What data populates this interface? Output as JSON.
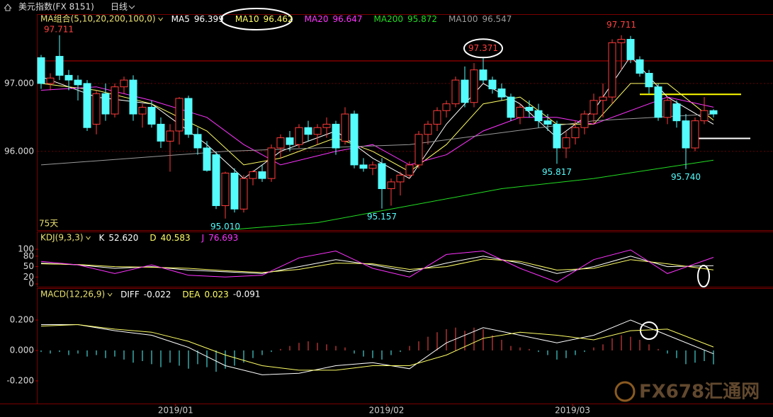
{
  "header": {
    "title": "美元指数(FX 8151)",
    "period": "日线"
  },
  "watermark": "FX678汇通网",
  "chart_data": [
    {
      "type": "candlestick",
      "indicator": "MA组合(5,10,20,200,100,0)",
      "up_color": "#ff3b3b",
      "down_color": "#54fcfc",
      "open": [
        97.38,
        97.0,
        97.4,
        97.12,
        97.05,
        97.0,
        96.4,
        96.85,
        96.55,
        96.95,
        97.05,
        96.55,
        96.65,
        96.4,
        96.15,
        96.3,
        96.78,
        96.25,
        96.05,
        95.95,
        95.2,
        95.68,
        95.15,
        95.6,
        95.7,
        95.6,
        96.05,
        96.2,
        96.1,
        96.35,
        96.25,
        96.35,
        96.4,
        96.15,
        96.55,
        95.8,
        95.75,
        95.82,
        95.45,
        95.55,
        95.65,
        95.8,
        96.25,
        96.4,
        96.6,
        96.7,
        97.05,
        96.72,
        97.2,
        97.05,
        96.92,
        96.8,
        96.5,
        96.65,
        96.6,
        96.45,
        96.4,
        96.05,
        96.2,
        96.35,
        96.55,
        96.75,
        96.8,
        97.6,
        97.65,
        97.35,
        97.15,
        96.95,
        96.5,
        96.7,
        96.45,
        96.05,
        96.45,
        96.6
      ],
      "high": [
        97.42,
        97.15,
        97.711,
        97.2,
        97.12,
        97.05,
        96.9,
        97.0,
        97.0,
        97.1,
        97.12,
        96.7,
        96.75,
        96.5,
        96.4,
        96.8,
        96.82,
        96.35,
        96.15,
        96.0,
        95.7,
        95.75,
        95.65,
        95.72,
        95.8,
        96.1,
        96.25,
        96.3,
        96.4,
        96.45,
        96.4,
        96.5,
        96.45,
        96.65,
        96.6,
        95.9,
        95.85,
        95.9,
        95.6,
        95.7,
        95.85,
        96.3,
        96.45,
        96.65,
        96.75,
        97.1,
        97.25,
        97.3,
        97.371,
        97.1,
        97.0,
        96.85,
        96.7,
        96.75,
        96.7,
        96.55,
        96.45,
        96.3,
        96.45,
        96.6,
        96.85,
        97.0,
        97.65,
        97.711,
        97.7,
        97.4,
        97.2,
        97.0,
        96.8,
        96.75,
        96.55,
        96.5,
        96.8,
        96.62
      ],
      "low": [
        96.92,
        96.9,
        97.05,
        96.9,
        96.75,
        96.3,
        96.25,
        96.45,
        96.5,
        96.85,
        96.45,
        96.35,
        96.35,
        96.05,
        95.7,
        96.1,
        96.2,
        95.95,
        95.7,
        95.15,
        95.01,
        95.1,
        95.1,
        95.5,
        95.55,
        95.55,
        95.9,
        96.0,
        96.05,
        96.15,
        96.1,
        96.2,
        95.95,
        96.1,
        95.75,
        95.7,
        95.65,
        95.157,
        95.2,
        95.35,
        95.6,
        95.75,
        96.1,
        96.3,
        96.5,
        96.65,
        96.65,
        96.65,
        97.0,
        96.85,
        96.75,
        96.45,
        96.4,
        96.5,
        96.35,
        96.3,
        95.817,
        95.9,
        96.1,
        96.25,
        96.4,
        96.5,
        96.7,
        97.2,
        97.3,
        97.1,
        96.85,
        96.45,
        96.4,
        96.35,
        95.74,
        96.0,
        96.4,
        96.5
      ],
      "close": [
        97.0,
        97.08,
        97.12,
        97.05,
        96.98,
        96.35,
        96.85,
        96.55,
        96.95,
        97.05,
        96.55,
        96.65,
        96.4,
        96.15,
        96.3,
        96.78,
        96.25,
        96.05,
        95.72,
        95.2,
        95.68,
        95.15,
        95.6,
        95.7,
        95.6,
        96.05,
        96.2,
        96.1,
        96.35,
        96.25,
        96.35,
        96.4,
        96.05,
        96.55,
        95.8,
        95.75,
        95.8,
        95.45,
        95.55,
        95.65,
        95.8,
        96.25,
        96.4,
        96.6,
        96.7,
        97.05,
        96.72,
        97.2,
        97.05,
        96.92,
        96.8,
        96.5,
        96.65,
        96.6,
        96.45,
        96.4,
        96.05,
        96.2,
        96.35,
        96.55,
        96.75,
        96.8,
        97.6,
        97.65,
        97.35,
        97.15,
        96.95,
        96.5,
        96.75,
        96.45,
        96.05,
        96.45,
        96.6,
        96.55
      ],
      "ylim": [
        94.84,
        98.0
      ],
      "yticks": [
        {
          "value": 96,
          "label": "96.000"
        },
        {
          "value": 97,
          "label": "97.000"
        }
      ],
      "xticks": [
        {
          "value": 14.6,
          "label": "2019/01"
        },
        {
          "value": 37.5,
          "label": "2019/02"
        },
        {
          "value": 57.7,
          "label": "2019/03"
        }
      ],
      "range_high": 97.711,
      "high_labels": [
        97.711,
        97.371
      ],
      "low_labels": [
        {
          "value": 95.01,
          "label": "95.010"
        },
        95.157,
        95.817,
        {
          "value": 95.74,
          "label": "95.740"
        }
      ],
      "period_label": "75天",
      "levels": [
        {
          "value": 97.333,
          "color": "#c00000"
        },
        {
          "value": 96.84,
          "color": "#ffff00",
          "x": [
            65,
            76
          ]
        },
        {
          "value": 96.19,
          "color": "#ffffff",
          "x": [
            71,
            77
          ]
        }
      ],
      "series": [
        {
          "name": "MA5",
          "last": 96.399,
          "color": "#ffffff",
          "x": [
            0,
            6,
            12,
            18,
            22,
            26,
            32,
            36,
            40,
            44,
            48,
            52,
            56,
            60,
            64,
            68,
            73
          ],
          "values": [
            97.1,
            96.8,
            96.7,
            96.1,
            95.6,
            96.0,
            96.3,
            95.9,
            95.6,
            96.4,
            97.0,
            96.7,
            96.2,
            96.6,
            97.4,
            96.8,
            96.4
          ]
        },
        {
          "name": "MA10",
          "last": 96.462,
          "color": "#ffff66",
          "x": [
            0,
            6,
            12,
            18,
            22,
            26,
            32,
            36,
            40,
            44,
            48,
            52,
            56,
            60,
            64,
            68,
            73
          ],
          "values": [
            97.0,
            96.9,
            96.7,
            96.3,
            95.8,
            95.9,
            96.2,
            96.0,
            95.7,
            96.1,
            96.7,
            96.8,
            96.4,
            96.4,
            97.0,
            97.0,
            96.46
          ]
        },
        {
          "name": "MA20",
          "last": 96.647,
          "color": "#ff33ff",
          "x": [
            0,
            6,
            12,
            18,
            22,
            26,
            32,
            36,
            40,
            44,
            48,
            52,
            56,
            60,
            64,
            68,
            73
          ],
          "values": [
            96.9,
            96.95,
            96.75,
            96.5,
            96.1,
            95.8,
            96.0,
            96.1,
            95.8,
            95.95,
            96.3,
            96.5,
            96.5,
            96.4,
            96.6,
            96.8,
            96.65
          ]
        },
        {
          "name": "MA200",
          "last": 95.872,
          "color": "#22dd22",
          "x": [
            21,
            30,
            40,
            50,
            60,
            73
          ],
          "values": [
            94.85,
            94.95,
            95.2,
            95.45,
            95.6,
            95.87
          ]
        },
        {
          "name": "MA100",
          "last": 96.547,
          "color": "#9a9a9a",
          "x": [
            0,
            20,
            40,
            60,
            73
          ],
          "values": [
            95.8,
            96.0,
            96.1,
            96.45,
            96.55
          ]
        }
      ]
    },
    {
      "type": "line",
      "indicator": "KDJ(9,3,3)",
      "ylim": [
        -8,
        149
      ],
      "yticks": [
        0,
        20,
        50,
        80,
        100
      ],
      "series": [
        {
          "name": "K",
          "last": 52.62,
          "last_label": "52.620",
          "color": "#ffffff",
          "x": [
            0,
            4,
            8,
            12,
            16,
            20,
            24,
            28,
            32,
            36,
            40,
            44,
            48,
            52,
            56,
            60,
            64,
            68,
            73
          ],
          "values": [
            60,
            55,
            45,
            50,
            40,
            35,
            30,
            50,
            70,
            55,
            35,
            60,
            80,
            60,
            30,
            50,
            80,
            50,
            52.62
          ]
        },
        {
          "name": "D",
          "last": 40.583,
          "color": "#ffff66",
          "x": [
            0,
            4,
            8,
            12,
            16,
            20,
            24,
            28,
            32,
            36,
            40,
            44,
            48,
            52,
            56,
            60,
            64,
            68,
            73
          ],
          "values": [
            58,
            56,
            50,
            48,
            45,
            38,
            33,
            42,
            60,
            58,
            42,
            50,
            72,
            65,
            40,
            45,
            70,
            58,
            40.583
          ]
        },
        {
          "name": "J",
          "last": 76.693,
          "color": "#ff33ff",
          "x": [
            0,
            4,
            8,
            12,
            16,
            20,
            24,
            28,
            32,
            36,
            40,
            44,
            48,
            52,
            56,
            60,
            64,
            68,
            73
          ],
          "values": [
            65,
            55,
            30,
            55,
            25,
            20,
            25,
            75,
            95,
            45,
            20,
            85,
            95,
            45,
            5,
            70,
            98,
            30,
            76.693
          ]
        }
      ]
    },
    {
      "type": "macd",
      "indicator": "MACD(12,26,9)",
      "ylim": [
        -0.349,
        0.405
      ],
      "yticks": [
        {
          "value": -0.2,
          "label": "-0.200"
        },
        {
          "value": 0,
          "label": "0.000"
        },
        {
          "value": 0.2,
          "label": "0.200"
        }
      ],
      "up_color": "#ff4a4a",
      "down_color": "#54fcfc",
      "histogram": [
        -0.01,
        -0.02,
        -0.01,
        -0.03,
        -0.02,
        -0.04,
        -0.03,
        -0.05,
        -0.04,
        -0.06,
        -0.08,
        -0.07,
        -0.09,
        -0.11,
        -0.08,
        -0.1,
        -0.12,
        -0.09,
        -0.11,
        -0.14,
        -0.12,
        -0.1,
        -0.08,
        -0.05,
        -0.03,
        -0.01,
        0.01,
        0.03,
        0.05,
        0.06,
        0.05,
        0.04,
        0.03,
        0.02,
        -0.02,
        -0.04,
        -0.05,
        -0.06,
        -0.03,
        -0.01,
        0.03,
        0.06,
        0.09,
        0.12,
        0.14,
        0.15,
        0.13,
        0.15,
        0.14,
        0.1,
        0.07,
        0.03,
        0.02,
        0.01,
        -0.01,
        -0.03,
        -0.06,
        -0.05,
        -0.03,
        -0.01,
        0.02,
        0.04,
        0.08,
        0.1,
        0.09,
        0.07,
        0.04,
        0.01,
        -0.02,
        -0.05,
        -0.09,
        -0.08,
        -0.07,
        -0.091
      ],
      "series": [
        {
          "name": "DIFF",
          "last": -0.022,
          "color": "#ffffff",
          "x": [
            0,
            4,
            8,
            12,
            16,
            20,
            24,
            28,
            32,
            36,
            40,
            44,
            48,
            52,
            56,
            60,
            64,
            68,
            73
          ],
          "values": [
            0.17,
            0.17,
            0.13,
            0.1,
            0.02,
            -0.1,
            -0.16,
            -0.15,
            -0.1,
            -0.08,
            -0.12,
            0.05,
            0.15,
            0.1,
            0.05,
            0.1,
            0.2,
            0.1,
            -0.022
          ]
        },
        {
          "name": "DEA",
          "last": 0.023,
          "color": "#ffff66",
          "x": [
            0,
            4,
            8,
            12,
            16,
            20,
            24,
            28,
            32,
            36,
            40,
            44,
            48,
            52,
            56,
            60,
            64,
            68,
            73
          ],
          "values": [
            0.16,
            0.17,
            0.14,
            0.12,
            0.06,
            -0.03,
            -0.1,
            -0.13,
            -0.13,
            -0.1,
            -0.1,
            -0.03,
            0.08,
            0.12,
            0.1,
            0.07,
            0.13,
            0.14,
            0.023
          ]
        }
      ]
    }
  ]
}
